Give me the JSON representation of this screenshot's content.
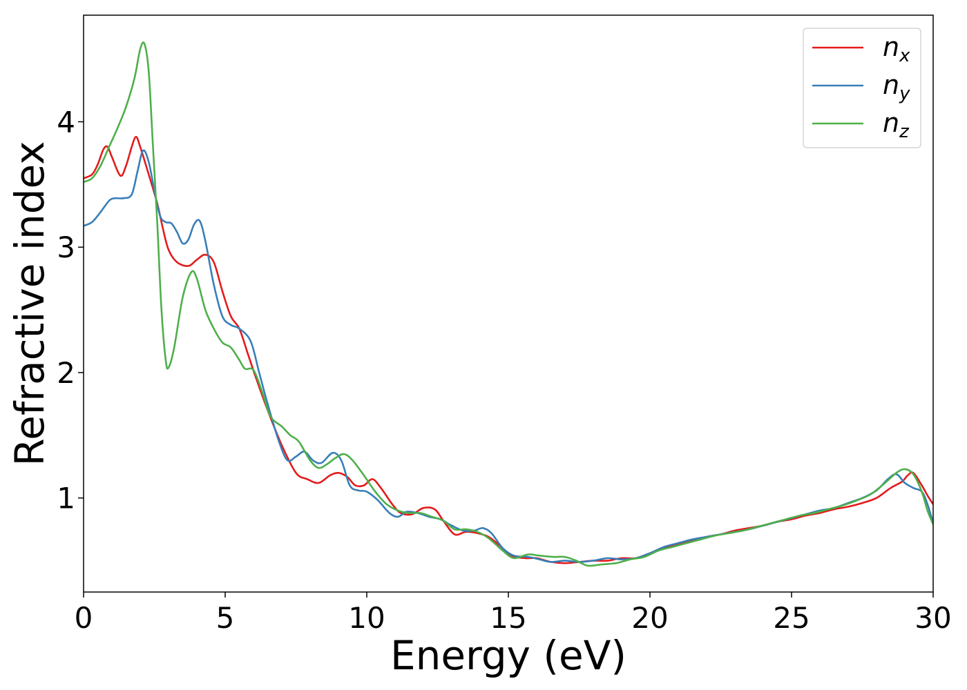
{
  "chart_data": {
    "type": "line",
    "xlabel": "Energy (eV)",
    "ylabel": "Refractive index",
    "xlim": [
      0,
      30
    ],
    "ylim": [
      0.25,
      4.85
    ],
    "xticks": [
      0,
      5,
      10,
      15,
      20,
      25,
      30
    ],
    "yticks": [
      1,
      2,
      3,
      4
    ],
    "grid": false,
    "legend_position": "top-right",
    "series": [
      {
        "name": "n_x",
        "label_main": "n",
        "label_sub": "x",
        "color": "#e41a1c",
        "points": [
          [
            0,
            3.55
          ],
          [
            0.3,
            3.58
          ],
          [
            0.5,
            3.66
          ],
          [
            0.7,
            3.78
          ],
          [
            0.85,
            3.8
          ],
          [
            1.0,
            3.72
          ],
          [
            1.3,
            3.57
          ],
          [
            1.5,
            3.65
          ],
          [
            1.7,
            3.8
          ],
          [
            1.85,
            3.88
          ],
          [
            2.0,
            3.8
          ],
          [
            2.3,
            3.58
          ],
          [
            2.6,
            3.35
          ],
          [
            2.8,
            3.15
          ],
          [
            3.0,
            2.98
          ],
          [
            3.3,
            2.88
          ],
          [
            3.7,
            2.85
          ],
          [
            4.0,
            2.9
          ],
          [
            4.3,
            2.94
          ],
          [
            4.6,
            2.88
          ],
          [
            4.9,
            2.65
          ],
          [
            5.2,
            2.45
          ],
          [
            5.5,
            2.35
          ],
          [
            5.8,
            2.15
          ],
          [
            6.1,
            1.95
          ],
          [
            6.5,
            1.7
          ],
          [
            7.0,
            1.42
          ],
          [
            7.5,
            1.2
          ],
          [
            7.9,
            1.15
          ],
          [
            8.3,
            1.12
          ],
          [
            8.7,
            1.18
          ],
          [
            9.0,
            1.2
          ],
          [
            9.3,
            1.17
          ],
          [
            9.6,
            1.1
          ],
          [
            9.9,
            1.1
          ],
          [
            10.2,
            1.15
          ],
          [
            10.5,
            1.08
          ],
          [
            10.9,
            0.95
          ],
          [
            11.2,
            0.88
          ],
          [
            11.6,
            0.87
          ],
          [
            12.0,
            0.92
          ],
          [
            12.4,
            0.91
          ],
          [
            12.7,
            0.82
          ],
          [
            13.1,
            0.71
          ],
          [
            13.5,
            0.73
          ],
          [
            13.9,
            0.72
          ],
          [
            14.3,
            0.69
          ],
          [
            14.7,
            0.62
          ],
          [
            15.1,
            0.54
          ],
          [
            15.6,
            0.52
          ],
          [
            16.0,
            0.52
          ],
          [
            16.5,
            0.49
          ],
          [
            17.0,
            0.48
          ],
          [
            17.5,
            0.49
          ],
          [
            18.0,
            0.5
          ],
          [
            18.5,
            0.5
          ],
          [
            19.0,
            0.52
          ],
          [
            19.5,
            0.52
          ],
          [
            20.0,
            0.56
          ],
          [
            20.5,
            0.6
          ],
          [
            21.0,
            0.63
          ],
          [
            21.5,
            0.66
          ],
          [
            22.0,
            0.69
          ],
          [
            22.5,
            0.71
          ],
          [
            23.0,
            0.74
          ],
          [
            23.5,
            0.76
          ],
          [
            24.0,
            0.78
          ],
          [
            24.5,
            0.81
          ],
          [
            25.0,
            0.83
          ],
          [
            25.5,
            0.86
          ],
          [
            26.0,
            0.88
          ],
          [
            26.5,
            0.91
          ],
          [
            27.0,
            0.93
          ],
          [
            27.5,
            0.96
          ],
          [
            28.0,
            1.0
          ],
          [
            28.5,
            1.08
          ],
          [
            28.9,
            1.13
          ],
          [
            29.1,
            1.18
          ],
          [
            29.3,
            1.2
          ],
          [
            29.6,
            1.1
          ],
          [
            29.8,
            1.02
          ],
          [
            30.0,
            0.95
          ]
        ]
      },
      {
        "name": "n_y",
        "label_main": "n",
        "label_sub": "y",
        "color": "#377eb8",
        "points": [
          [
            0,
            3.17
          ],
          [
            0.3,
            3.2
          ],
          [
            0.6,
            3.28
          ],
          [
            0.9,
            3.37
          ],
          [
            1.1,
            3.39
          ],
          [
            1.4,
            3.39
          ],
          [
            1.7,
            3.42
          ],
          [
            1.9,
            3.6
          ],
          [
            2.1,
            3.77
          ],
          [
            2.3,
            3.68
          ],
          [
            2.5,
            3.45
          ],
          [
            2.7,
            3.25
          ],
          [
            2.9,
            3.2
          ],
          [
            3.1,
            3.19
          ],
          [
            3.3,
            3.12
          ],
          [
            3.5,
            3.03
          ],
          [
            3.7,
            3.06
          ],
          [
            3.9,
            3.18
          ],
          [
            4.1,
            3.21
          ],
          [
            4.3,
            3.05
          ],
          [
            4.6,
            2.7
          ],
          [
            4.9,
            2.45
          ],
          [
            5.2,
            2.38
          ],
          [
            5.5,
            2.35
          ],
          [
            5.9,
            2.25
          ],
          [
            6.2,
            2.0
          ],
          [
            6.5,
            1.75
          ],
          [
            6.9,
            1.45
          ],
          [
            7.2,
            1.3
          ],
          [
            7.5,
            1.33
          ],
          [
            7.8,
            1.37
          ],
          [
            8.1,
            1.3
          ],
          [
            8.4,
            1.28
          ],
          [
            8.8,
            1.36
          ],
          [
            9.1,
            1.3
          ],
          [
            9.4,
            1.1
          ],
          [
            9.7,
            1.06
          ],
          [
            10.0,
            1.05
          ],
          [
            10.4,
            0.98
          ],
          [
            10.8,
            0.88
          ],
          [
            11.1,
            0.85
          ],
          [
            11.4,
            0.89
          ],
          [
            11.8,
            0.88
          ],
          [
            12.2,
            0.85
          ],
          [
            12.6,
            0.83
          ],
          [
            13.0,
            0.78
          ],
          [
            13.4,
            0.74
          ],
          [
            13.8,
            0.74
          ],
          [
            14.1,
            0.76
          ],
          [
            14.4,
            0.72
          ],
          [
            14.8,
            0.6
          ],
          [
            15.2,
            0.54
          ],
          [
            15.7,
            0.53
          ],
          [
            16.1,
            0.51
          ],
          [
            16.5,
            0.49
          ],
          [
            17.0,
            0.5
          ],
          [
            17.5,
            0.49
          ],
          [
            18.0,
            0.5
          ],
          [
            18.5,
            0.52
          ],
          [
            19.0,
            0.51
          ],
          [
            19.5,
            0.52
          ],
          [
            20.0,
            0.56
          ],
          [
            20.5,
            0.61
          ],
          [
            21.0,
            0.64
          ],
          [
            21.5,
            0.67
          ],
          [
            22.0,
            0.69
          ],
          [
            22.5,
            0.71
          ],
          [
            23.0,
            0.73
          ],
          [
            23.5,
            0.75
          ],
          [
            24.0,
            0.78
          ],
          [
            24.5,
            0.81
          ],
          [
            25.0,
            0.84
          ],
          [
            25.5,
            0.87
          ],
          [
            26.0,
            0.9
          ],
          [
            26.5,
            0.92
          ],
          [
            27.0,
            0.96
          ],
          [
            27.5,
            1.0
          ],
          [
            28.0,
            1.06
          ],
          [
            28.4,
            1.15
          ],
          [
            28.7,
            1.19
          ],
          [
            29.0,
            1.12
          ],
          [
            29.3,
            1.08
          ],
          [
            29.6,
            1.05
          ],
          [
            29.8,
            0.95
          ],
          [
            30.0,
            0.8
          ]
        ]
      },
      {
        "name": "n_z",
        "label_main": "n",
        "label_sub": "z",
        "color": "#4daf4a",
        "points": [
          [
            0,
            3.52
          ],
          [
            0.3,
            3.55
          ],
          [
            0.6,
            3.65
          ],
          [
            0.9,
            3.8
          ],
          [
            1.2,
            3.95
          ],
          [
            1.5,
            4.12
          ],
          [
            1.8,
            4.35
          ],
          [
            2.0,
            4.58
          ],
          [
            2.15,
            4.62
          ],
          [
            2.3,
            4.4
          ],
          [
            2.45,
            3.8
          ],
          [
            2.6,
            3.2
          ],
          [
            2.75,
            2.5
          ],
          [
            2.9,
            2.1
          ],
          [
            3.0,
            2.04
          ],
          [
            3.2,
            2.2
          ],
          [
            3.5,
            2.6
          ],
          [
            3.8,
            2.8
          ],
          [
            4.0,
            2.75
          ],
          [
            4.3,
            2.5
          ],
          [
            4.6,
            2.35
          ],
          [
            4.9,
            2.24
          ],
          [
            5.2,
            2.2
          ],
          [
            5.5,
            2.1
          ],
          [
            5.7,
            2.03
          ],
          [
            6.0,
            2.02
          ],
          [
            6.3,
            1.85
          ],
          [
            6.6,
            1.65
          ],
          [
            7.0,
            1.57
          ],
          [
            7.3,
            1.5
          ],
          [
            7.6,
            1.45
          ],
          [
            8.0,
            1.3
          ],
          [
            8.3,
            1.24
          ],
          [
            8.6,
            1.27
          ],
          [
            8.9,
            1.32
          ],
          [
            9.2,
            1.35
          ],
          [
            9.5,
            1.3
          ],
          [
            9.9,
            1.18
          ],
          [
            10.3,
            1.05
          ],
          [
            10.7,
            0.95
          ],
          [
            11.1,
            0.9
          ],
          [
            11.5,
            0.88
          ],
          [
            11.9,
            0.88
          ],
          [
            12.3,
            0.85
          ],
          [
            12.7,
            0.82
          ],
          [
            13.1,
            0.75
          ],
          [
            13.5,
            0.75
          ],
          [
            13.9,
            0.73
          ],
          [
            14.3,
            0.68
          ],
          [
            14.8,
            0.58
          ],
          [
            15.2,
            0.52
          ],
          [
            15.7,
            0.55
          ],
          [
            16.1,
            0.54
          ],
          [
            16.6,
            0.53
          ],
          [
            17.0,
            0.53
          ],
          [
            17.4,
            0.5
          ],
          [
            17.8,
            0.46
          ],
          [
            18.3,
            0.47
          ],
          [
            18.8,
            0.48
          ],
          [
            19.3,
            0.51
          ],
          [
            19.8,
            0.53
          ],
          [
            20.3,
            0.58
          ],
          [
            20.8,
            0.61
          ],
          [
            21.3,
            0.64
          ],
          [
            21.8,
            0.67
          ],
          [
            22.3,
            0.7
          ],
          [
            22.8,
            0.72
          ],
          [
            23.3,
            0.74
          ],
          [
            23.8,
            0.77
          ],
          [
            24.3,
            0.8
          ],
          [
            24.8,
            0.83
          ],
          [
            25.3,
            0.86
          ],
          [
            25.8,
            0.88
          ],
          [
            26.3,
            0.91
          ],
          [
            26.8,
            0.94
          ],
          [
            27.3,
            0.98
          ],
          [
            27.8,
            1.03
          ],
          [
            28.3,
            1.12
          ],
          [
            28.7,
            1.2
          ],
          [
            29.0,
            1.23
          ],
          [
            29.3,
            1.19
          ],
          [
            29.6,
            1.05
          ],
          [
            29.8,
            0.9
          ],
          [
            30.0,
            0.79
          ]
        ]
      }
    ]
  }
}
